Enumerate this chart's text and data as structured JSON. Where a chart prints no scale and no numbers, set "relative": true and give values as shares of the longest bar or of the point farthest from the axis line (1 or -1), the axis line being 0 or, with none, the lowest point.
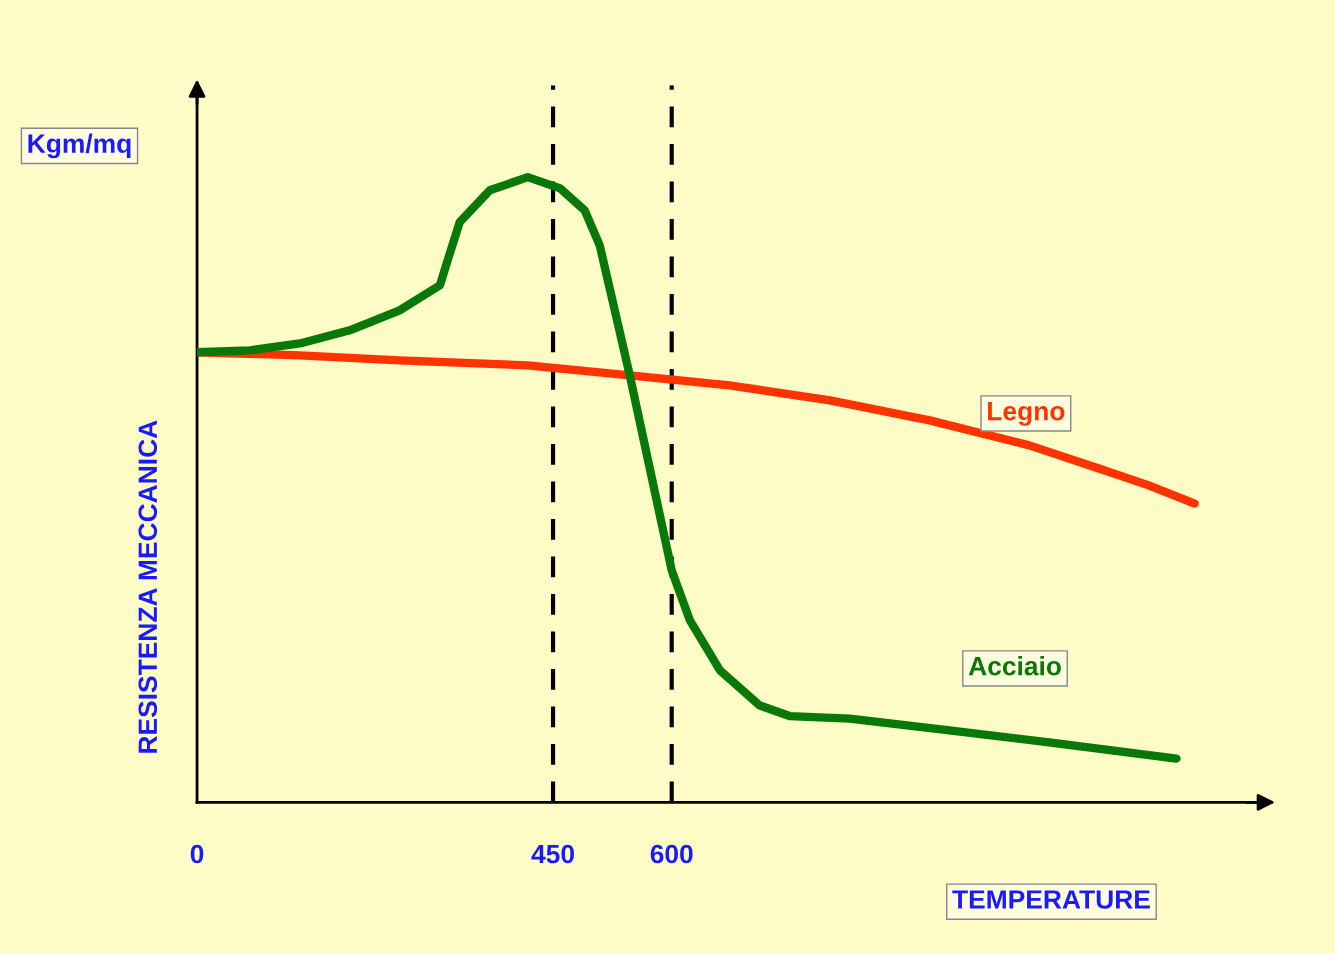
{
  "chart_data": {
    "type": "line",
    "relative": true,
    "ylabel": "RESISTENZA MECCANICA",
    "xlabel": "TEMPERATURE",
    "annotations": [
      "Kgm/mq"
    ],
    "xlim": [
      0,
      1350
    ],
    "xticks": [
      0,
      450,
      600
    ],
    "grid": false,
    "marker": "none",
    "line_style": "solid",
    "series": [
      {
        "name": "Legno",
        "color": "#ff3300",
        "x": [
          0,
          130,
          256,
          418,
          547,
          673,
          800,
          926,
          1052,
          1140,
          1203,
          1261
        ],
        "values": [
          0.72,
          0.715,
          0.707,
          0.699,
          0.683,
          0.667,
          0.643,
          0.611,
          0.571,
          0.534,
          0.507,
          0.478
        ]
      },
      {
        "name": "Acciaio",
        "color": "#087808",
        "x": [
          0,
          67,
          130,
          193,
          256,
          307,
          316,
          332,
          370,
          418,
          459,
          490,
          509,
          547,
          600,
          623,
          661,
          711,
          749,
          825,
          951,
          1077,
          1238
        ],
        "values": [
          0.72,
          0.723,
          0.734,
          0.755,
          0.787,
          0.827,
          0.864,
          0.928,
          0.979,
          1.0,
          0.982,
          0.947,
          0.891,
          0.683,
          0.371,
          0.291,
          0.211,
          0.155,
          0.138,
          0.134,
          0.115,
          0.096,
          0.07
        ]
      }
    ],
    "ref_lines": [
      {
        "axis": "x",
        "value": 450,
        "color": "#000000",
        "line_style": "dashed"
      },
      {
        "axis": "x",
        "value": 600,
        "color": "#000000",
        "line_style": "dashed"
      }
    ]
  }
}
